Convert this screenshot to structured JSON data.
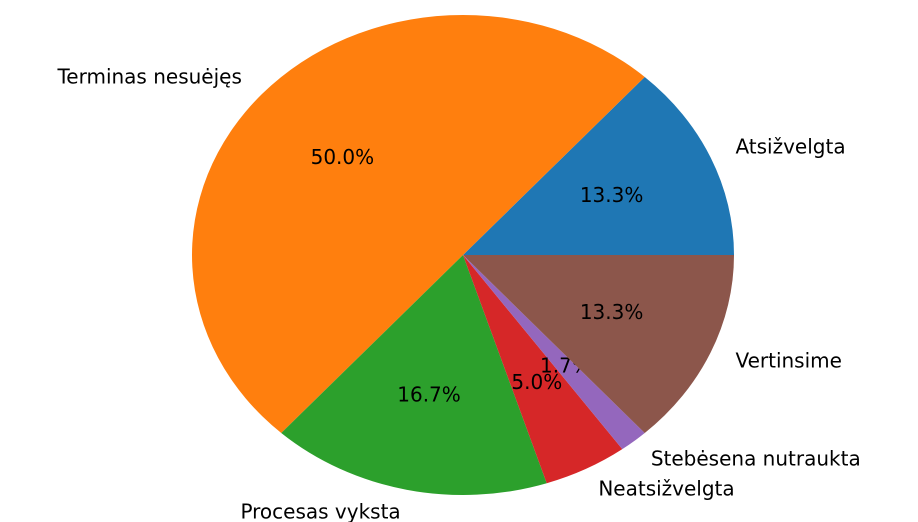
{
  "chart_data": {
    "type": "pie",
    "categories": [
      "Atsižvelgta",
      "Terminas nesuėjęs",
      "Procesas vyksta",
      "Neatsižvelgta",
      "Stebėsena nutraukta",
      "Vertinsime"
    ],
    "values": [
      13.3,
      50.0,
      16.7,
      5.0,
      1.7,
      13.3
    ],
    "value_labels": [
      "13.3%",
      "50.0%",
      "16.7%",
      "5.0%",
      "1.7%",
      "13.3%"
    ],
    "colors": [
      "#1f77b4",
      "#ff7f0e",
      "#2ca02c",
      "#d62728",
      "#9467bd",
      "#8c564b"
    ]
  }
}
